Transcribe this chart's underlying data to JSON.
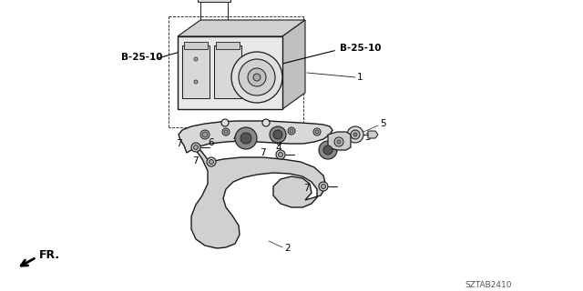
{
  "bg_color": "#ffffff",
  "line_color": "#1a1a1a",
  "text_color": "#000000",
  "diagram_code": "SZTAB2410",
  "labels": {
    "b25_10_left": "B-25-10",
    "b25_10_right": "B-25-10",
    "fr_label": "FR.",
    "part1": "1",
    "part2": "2",
    "part3": "3",
    "part4": "4",
    "part5": "5",
    "part6": "6",
    "part7": "7"
  },
  "figsize": [
    6.4,
    3.2
  ],
  "dpi": 100
}
